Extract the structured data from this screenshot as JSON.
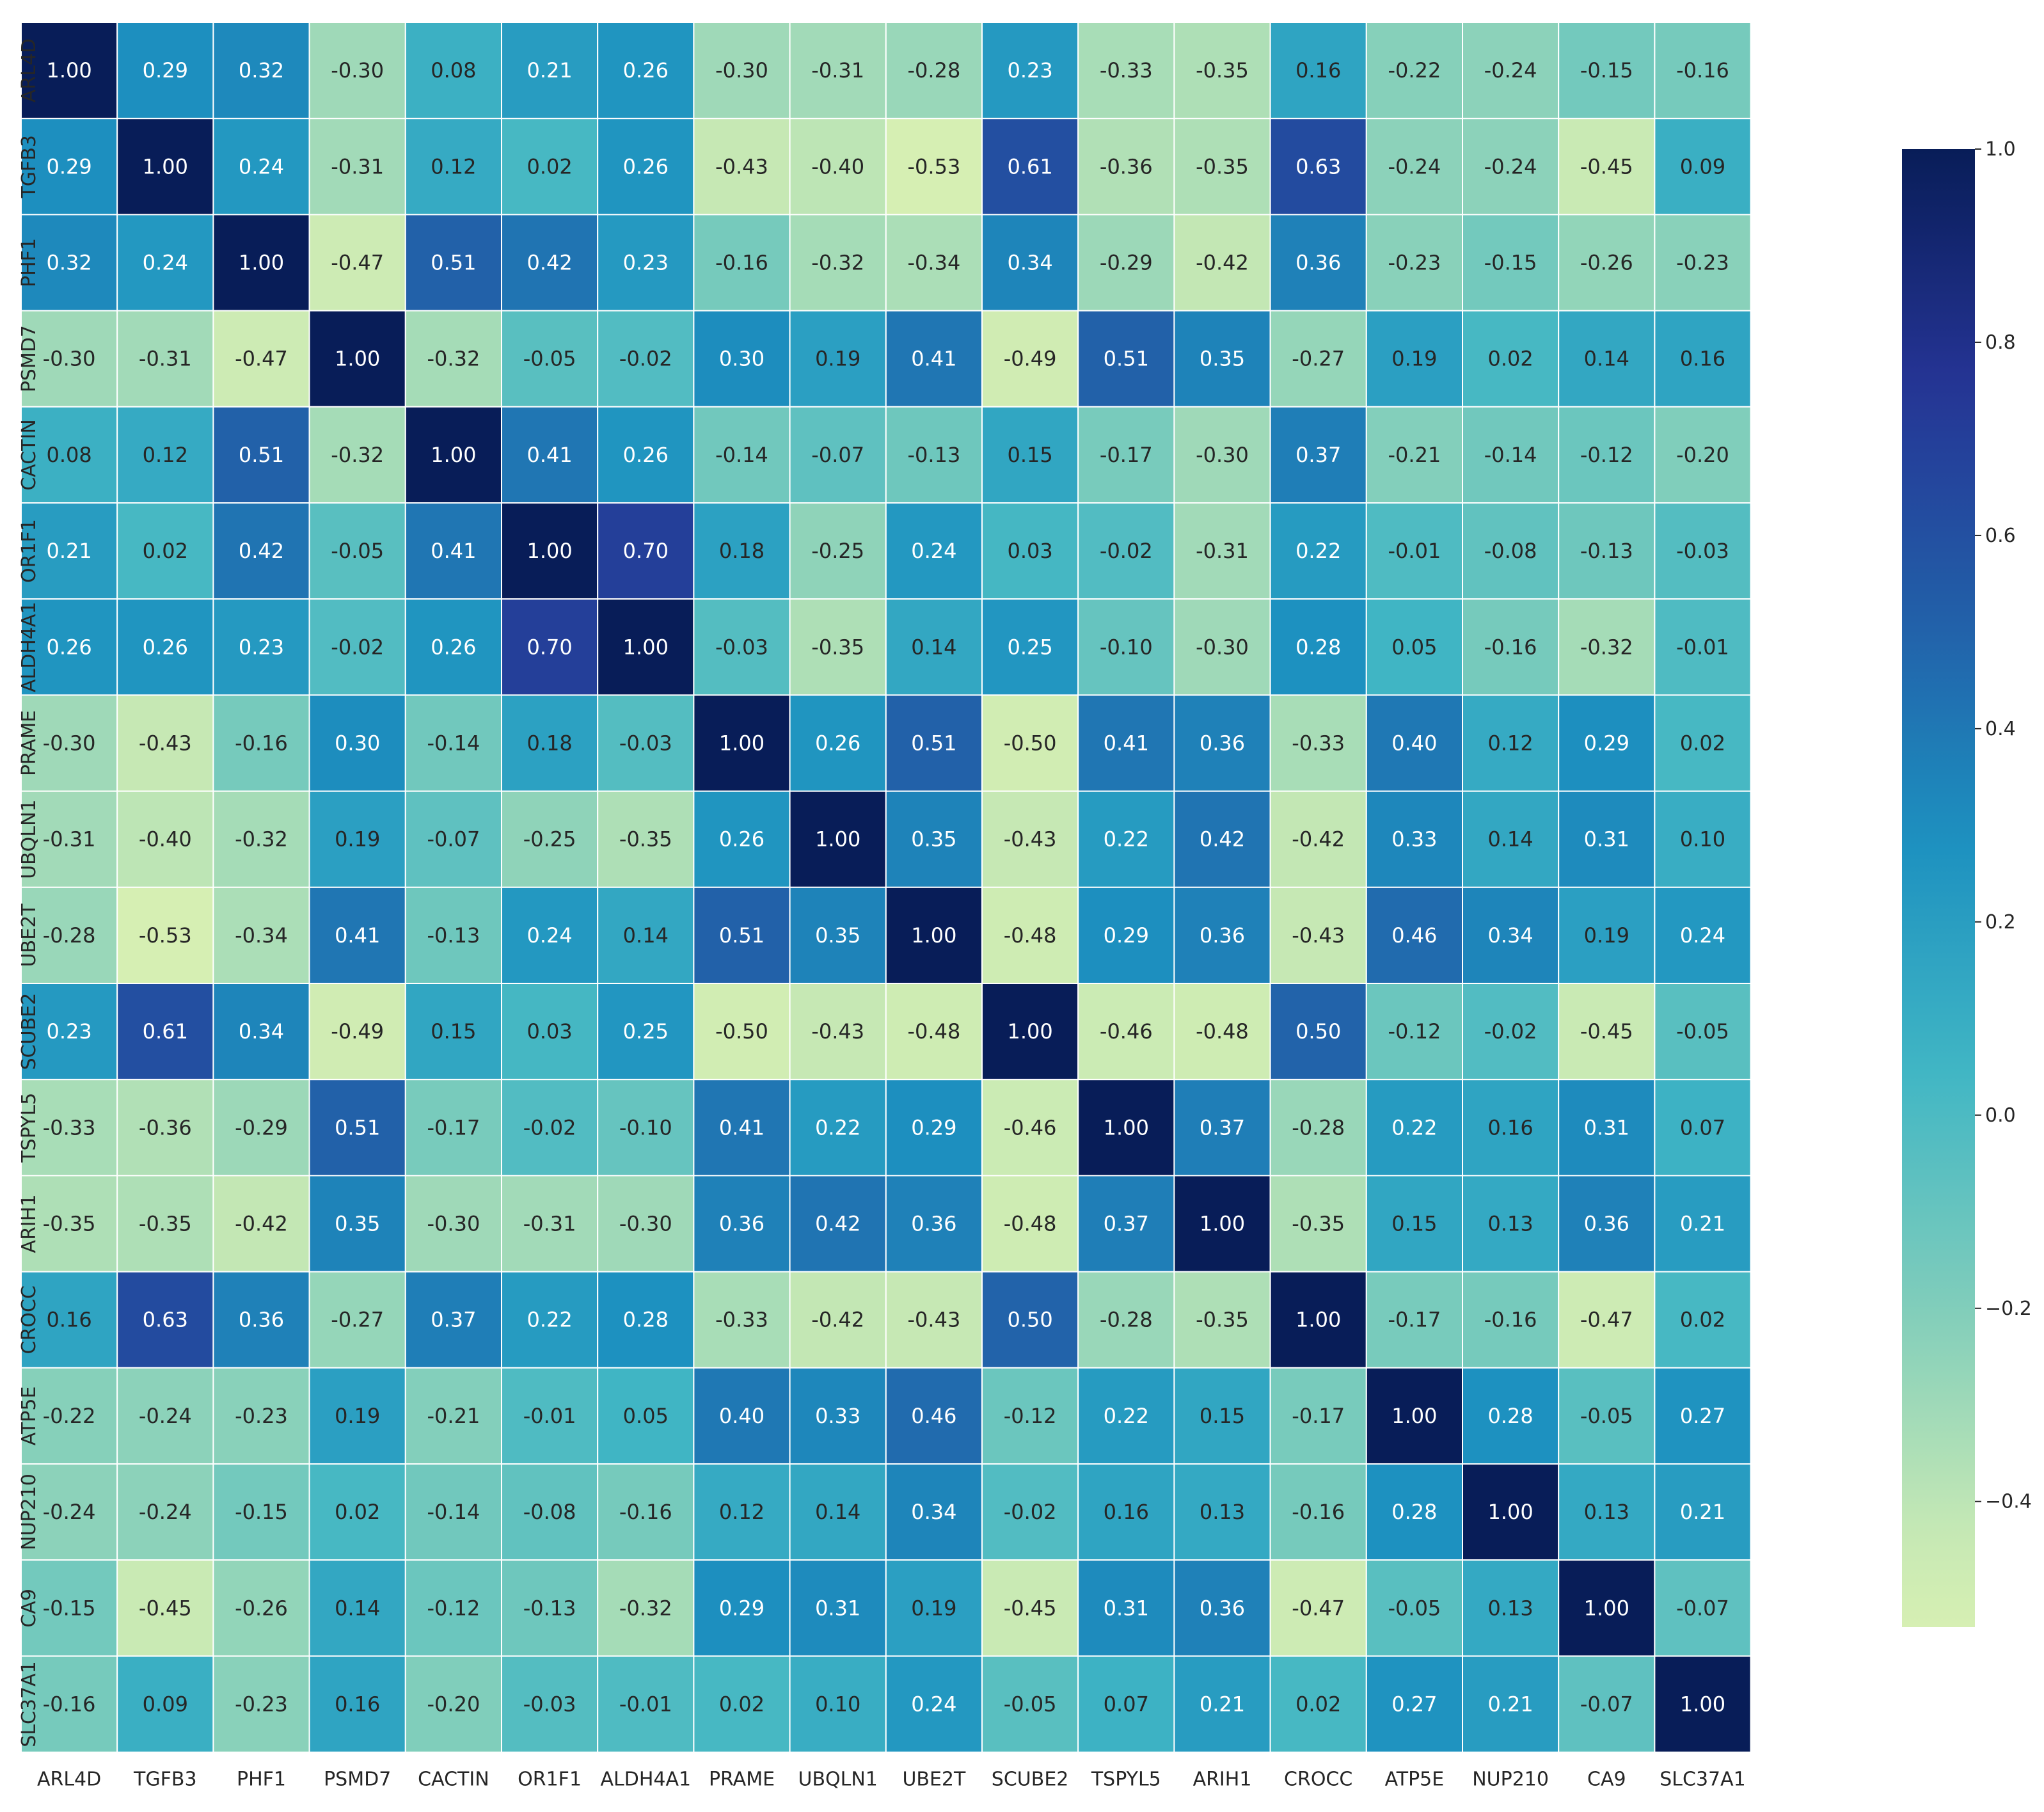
{
  "chart_data": {
    "type": "heatmap",
    "title": "",
    "xlabel": "",
    "ylabel": "",
    "colormap": "YlGnBu",
    "grid": true,
    "grid_color": "#ffffff",
    "value_format": "0.00",
    "labels": [
      "ARL4D",
      "TGFB3",
      "PHF1",
      "PSMD7",
      "CACTIN",
      "OR1F1",
      "ALDH4A1",
      "PRAME",
      "UBQLN1",
      "UBE2T",
      "SCUBE2",
      "TSPYL5",
      "ARIH1",
      "CROCC",
      "ATP5E",
      "NUP210",
      "CA9",
      "SLC37A1"
    ],
    "matrix": [
      [
        1.0,
        0.29,
        0.32,
        -0.3,
        0.08,
        0.21,
        0.26,
        -0.3,
        -0.31,
        -0.28,
        0.23,
        -0.33,
        -0.35,
        0.16,
        -0.22,
        -0.24,
        -0.15,
        -0.16
      ],
      [
        0.29,
        1.0,
        0.24,
        -0.31,
        0.12,
        0.02,
        0.26,
        -0.43,
        -0.4,
        -0.53,
        0.61,
        -0.36,
        -0.35,
        0.63,
        -0.24,
        -0.24,
        -0.45,
        0.09
      ],
      [
        0.32,
        0.24,
        1.0,
        -0.47,
        0.51,
        0.42,
        0.23,
        -0.16,
        -0.32,
        -0.34,
        0.34,
        -0.29,
        -0.42,
        0.36,
        -0.23,
        -0.15,
        -0.26,
        -0.23
      ],
      [
        -0.3,
        -0.31,
        -0.47,
        1.0,
        -0.32,
        -0.05,
        -0.02,
        0.3,
        0.19,
        0.41,
        -0.49,
        0.51,
        0.35,
        -0.27,
        0.19,
        0.02,
        0.14,
        0.16
      ],
      [
        0.08,
        0.12,
        0.51,
        -0.32,
        1.0,
        0.41,
        0.26,
        -0.14,
        -0.07,
        -0.13,
        0.15,
        -0.17,
        -0.3,
        0.37,
        -0.21,
        -0.14,
        -0.12,
        -0.2
      ],
      [
        0.21,
        0.02,
        0.42,
        -0.05,
        0.41,
        1.0,
        0.7,
        0.18,
        -0.25,
        0.24,
        0.03,
        -0.02,
        -0.31,
        0.22,
        -0.01,
        -0.08,
        -0.13,
        -0.03
      ],
      [
        0.26,
        0.26,
        0.23,
        -0.02,
        0.26,
        0.7,
        1.0,
        -0.03,
        -0.35,
        0.14,
        0.25,
        -0.1,
        -0.3,
        0.28,
        0.05,
        -0.16,
        -0.32,
        -0.01
      ],
      [
        -0.3,
        -0.43,
        -0.16,
        0.3,
        -0.14,
        0.18,
        -0.03,
        1.0,
        0.26,
        0.51,
        -0.5,
        0.41,
        0.36,
        -0.33,
        0.4,
        0.12,
        0.29,
        0.02
      ],
      [
        -0.31,
        -0.4,
        -0.32,
        0.19,
        -0.07,
        -0.25,
        -0.35,
        0.26,
        1.0,
        0.35,
        -0.43,
        0.22,
        0.42,
        -0.42,
        0.33,
        0.14,
        0.31,
        0.1
      ],
      [
        -0.28,
        -0.53,
        -0.34,
        0.41,
        -0.13,
        0.24,
        0.14,
        0.51,
        0.35,
        1.0,
        -0.48,
        0.29,
        0.36,
        -0.43,
        0.46,
        0.34,
        0.19,
        0.24
      ],
      [
        0.23,
        0.61,
        0.34,
        -0.49,
        0.15,
        0.03,
        0.25,
        -0.5,
        -0.43,
        -0.48,
        1.0,
        -0.46,
        -0.48,
        0.5,
        -0.12,
        -0.02,
        -0.45,
        -0.05
      ],
      [
        -0.33,
        -0.36,
        -0.29,
        0.51,
        -0.17,
        -0.02,
        -0.1,
        0.41,
        0.22,
        0.29,
        -0.46,
        1.0,
        0.37,
        -0.28,
        0.22,
        0.16,
        0.31,
        0.07
      ],
      [
        -0.35,
        -0.35,
        -0.42,
        0.35,
        -0.3,
        -0.31,
        -0.3,
        0.36,
        0.42,
        0.36,
        -0.48,
        0.37,
        1.0,
        -0.35,
        0.15,
        0.13,
        0.36,
        0.21
      ],
      [
        0.16,
        0.63,
        0.36,
        -0.27,
        0.37,
        0.22,
        0.28,
        -0.33,
        -0.42,
        -0.43,
        0.5,
        -0.28,
        -0.35,
        1.0,
        -0.17,
        -0.16,
        -0.47,
        0.02
      ],
      [
        -0.22,
        -0.24,
        -0.23,
        0.19,
        -0.21,
        -0.01,
        0.05,
        0.4,
        0.33,
        0.46,
        -0.12,
        0.22,
        0.15,
        -0.17,
        1.0,
        0.28,
        -0.05,
        0.27
      ],
      [
        -0.24,
        -0.24,
        -0.15,
        0.02,
        -0.14,
        -0.08,
        -0.16,
        0.12,
        0.14,
        0.34,
        -0.02,
        0.16,
        0.13,
        -0.16,
        0.28,
        1.0,
        0.13,
        0.21
      ],
      [
        -0.15,
        -0.45,
        -0.26,
        0.14,
        -0.12,
        -0.13,
        -0.32,
        0.29,
        0.31,
        0.19,
        -0.45,
        0.31,
        0.36,
        -0.47,
        -0.05,
        0.13,
        1.0,
        -0.07
      ],
      [
        -0.16,
        0.09,
        -0.23,
        0.16,
        -0.2,
        -0.03,
        -0.01,
        0.02,
        0.1,
        0.24,
        -0.05,
        0.07,
        0.21,
        0.02,
        0.27,
        0.21,
        -0.07,
        1.0
      ]
    ],
    "colorbar": {
      "vmin": -0.53,
      "vmax": 1.0,
      "ticks": [
        1.0,
        0.8,
        0.6,
        0.4,
        0.2,
        0.0,
        -0.2,
        -0.4
      ],
      "tick_labels": [
        "1.0",
        "0.8",
        "0.6",
        "0.4",
        "0.2",
        "0.0",
        "−0.2",
        "−0.4"
      ]
    }
  }
}
